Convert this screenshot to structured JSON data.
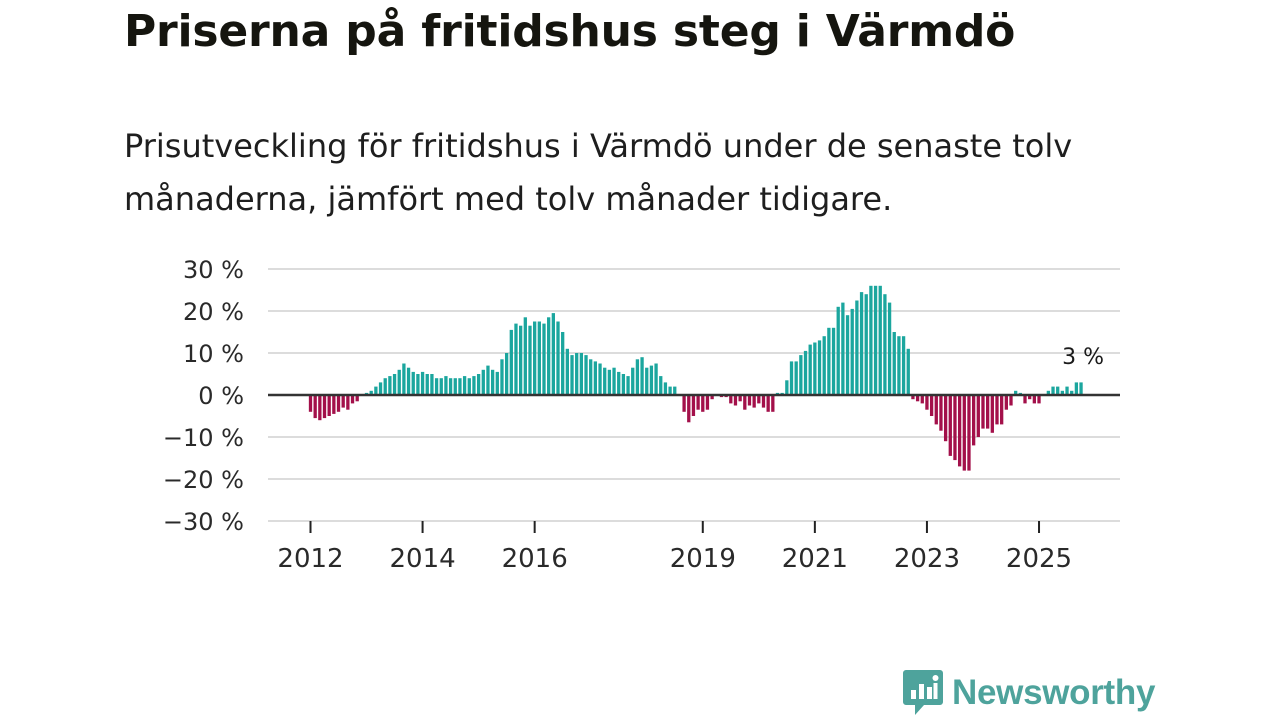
{
  "title": "Priserna på fritidshus steg i Värmdö",
  "subtitle": "Prisutveckling för fritidshus i Värmdö under de senaste tolv månaderna, jämfört med tolv månader tidigare.",
  "logo": {
    "text": "Newsworthy",
    "color": "#4ea39c"
  },
  "colors": {
    "positive": "#1ba69e",
    "negative": "#a3104a",
    "grid": "#dcdcdc",
    "zero": "#333333"
  },
  "chart_data": {
    "type": "bar",
    "title": "Priserna på fritidshus steg i Värmdö",
    "ylabel": "",
    "xlabel": "",
    "ylim": [
      -30,
      30
    ],
    "y_ticks": [
      30,
      20,
      10,
      0,
      -10,
      -20,
      -30
    ],
    "y_tick_labels": [
      "30 %",
      "20 %",
      "10 %",
      "0 %",
      "−10 %",
      "−20 %",
      "−30 %"
    ],
    "x_ticks": [
      {
        "label": "2012",
        "index": 0
      },
      {
        "label": "2014",
        "index": 24
      },
      {
        "label": "2016",
        "index": 48
      },
      {
        "label": "2019",
        "index": 84
      },
      {
        "label": "2021",
        "index": 108
      },
      {
        "label": "2023",
        "index": 132
      },
      {
        "label": "2025",
        "index": 156
      }
    ],
    "period_start": "2012-01",
    "period_end": "2025-10",
    "values": [
      -4,
      -5.5,
      -6,
      -5.5,
      -5,
      -4.5,
      -4,
      -3,
      -3.5,
      -2,
      -1.5,
      0,
      0.5,
      1,
      2,
      3,
      4,
      4.5,
      5,
      6,
      7.5,
      6.5,
      5.5,
      5,
      5.5,
      5,
      5,
      4,
      4,
      4.5,
      4,
      4,
      4,
      4.5,
      4,
      4.5,
      5,
      6,
      7,
      6,
      5.5,
      8.5,
      10,
      15.5,
      17,
      16.5,
      18.5,
      16.5,
      17.5,
      17.5,
      17,
      18.5,
      19.5,
      17.5,
      15,
      11,
      9.5,
      10,
      10,
      9.5,
      8.5,
      8,
      7.5,
      6.5,
      6,
      6.5,
      5.5,
      5,
      4.5,
      6.5,
      8.5,
      9,
      6.5,
      7,
      7.5,
      4.5,
      3,
      2,
      2,
      0,
      -4,
      -6.5,
      -5,
      -3.5,
      -4,
      -3.5,
      -1,
      0,
      -0.5,
      -0.5,
      -2,
      -2.5,
      -1.5,
      -3.5,
      -2.5,
      -3,
      -2,
      -3,
      -4,
      -4,
      0.5,
      0.5,
      3.5,
      8,
      8,
      9.5,
      10.5,
      12,
      12.5,
      13,
      14,
      16,
      16,
      21,
      22,
      19,
      20.5,
      22.5,
      24.5,
      24,
      26,
      26,
      26,
      24,
      22,
      15,
      14,
      14,
      11,
      -1,
      -1.5,
      -2,
      -3.5,
      -5,
      -7,
      -8.5,
      -11,
      -14.5,
      -15.5,
      -17,
      -18,
      -18,
      -12,
      -10,
      -8,
      -8,
      -9,
      -7,
      -7,
      -3.5,
      -2.5,
      1,
      0.5,
      -2,
      -1,
      -2,
      -2,
      0,
      1,
      2,
      2,
      1,
      2,
      1,
      3,
      3
    ],
    "annotation": {
      "label": "3 %",
      "value": 3
    }
  }
}
